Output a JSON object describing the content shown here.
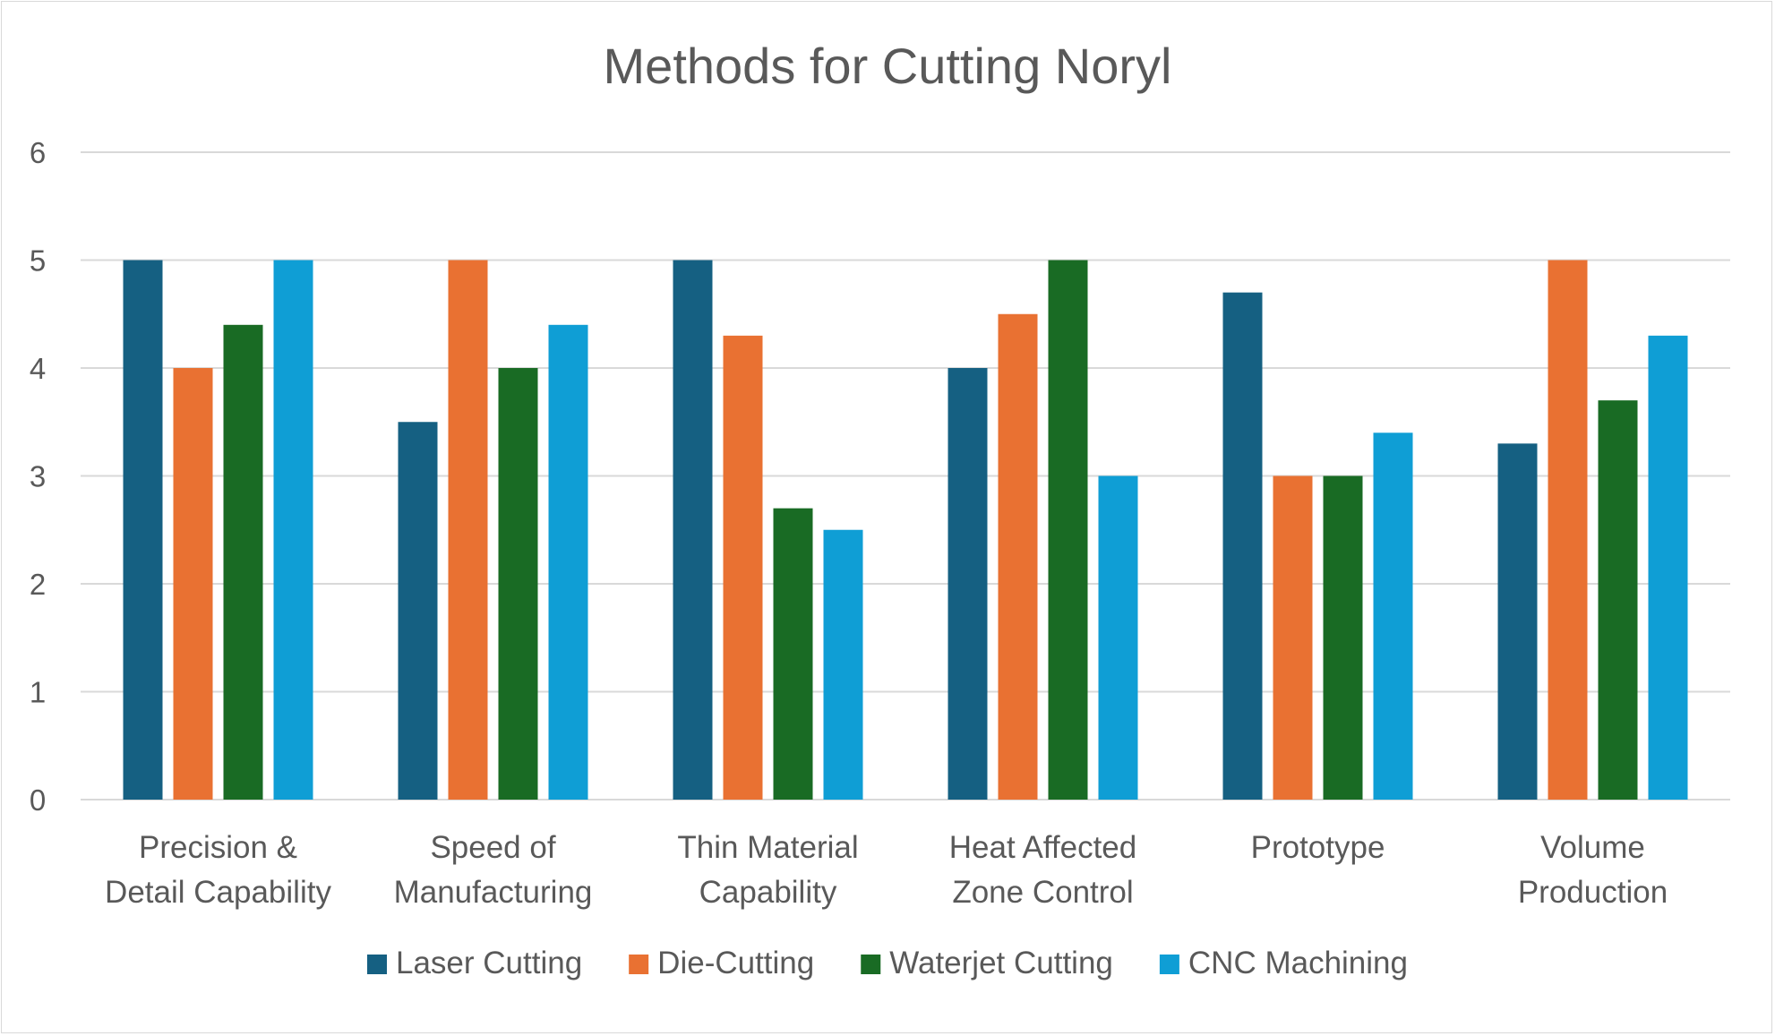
{
  "chart_data": {
    "type": "bar",
    "title": "Methods for Cutting Noryl",
    "xlabel": "",
    "ylabel": "",
    "ylim": [
      0,
      6
    ],
    "yticks": [
      "0",
      "1",
      "2",
      "3",
      "4",
      "5",
      "6"
    ],
    "grid": true,
    "legend_position": "bottom",
    "categories": [
      [
        "Precision &",
        "Detail Capability"
      ],
      [
        "Speed of",
        "Manufacturing"
      ],
      [
        "Thin Material",
        "Capability"
      ],
      [
        "Heat Affected",
        "Zone Control"
      ],
      [
        "Prototype"
      ],
      [
        "Volume",
        "Production"
      ]
    ],
    "series": [
      {
        "name": "Laser Cutting",
        "color": "#156082",
        "values": [
          5,
          3.5,
          5,
          4,
          4.7,
          3.3
        ]
      },
      {
        "name": "Die-Cutting",
        "color": "#E97132",
        "values": [
          4,
          5,
          4.3,
          4.5,
          3,
          5
        ]
      },
      {
        "name": "Waterjet Cutting",
        "color": "#196B24",
        "values": [
          4.4,
          4,
          2.7,
          5,
          3,
          3.7
        ]
      },
      {
        "name": "CNC Machining",
        "color": "#0F9ED5",
        "values": [
          5,
          4.4,
          2.5,
          3,
          3.4,
          4.3
        ]
      }
    ]
  }
}
